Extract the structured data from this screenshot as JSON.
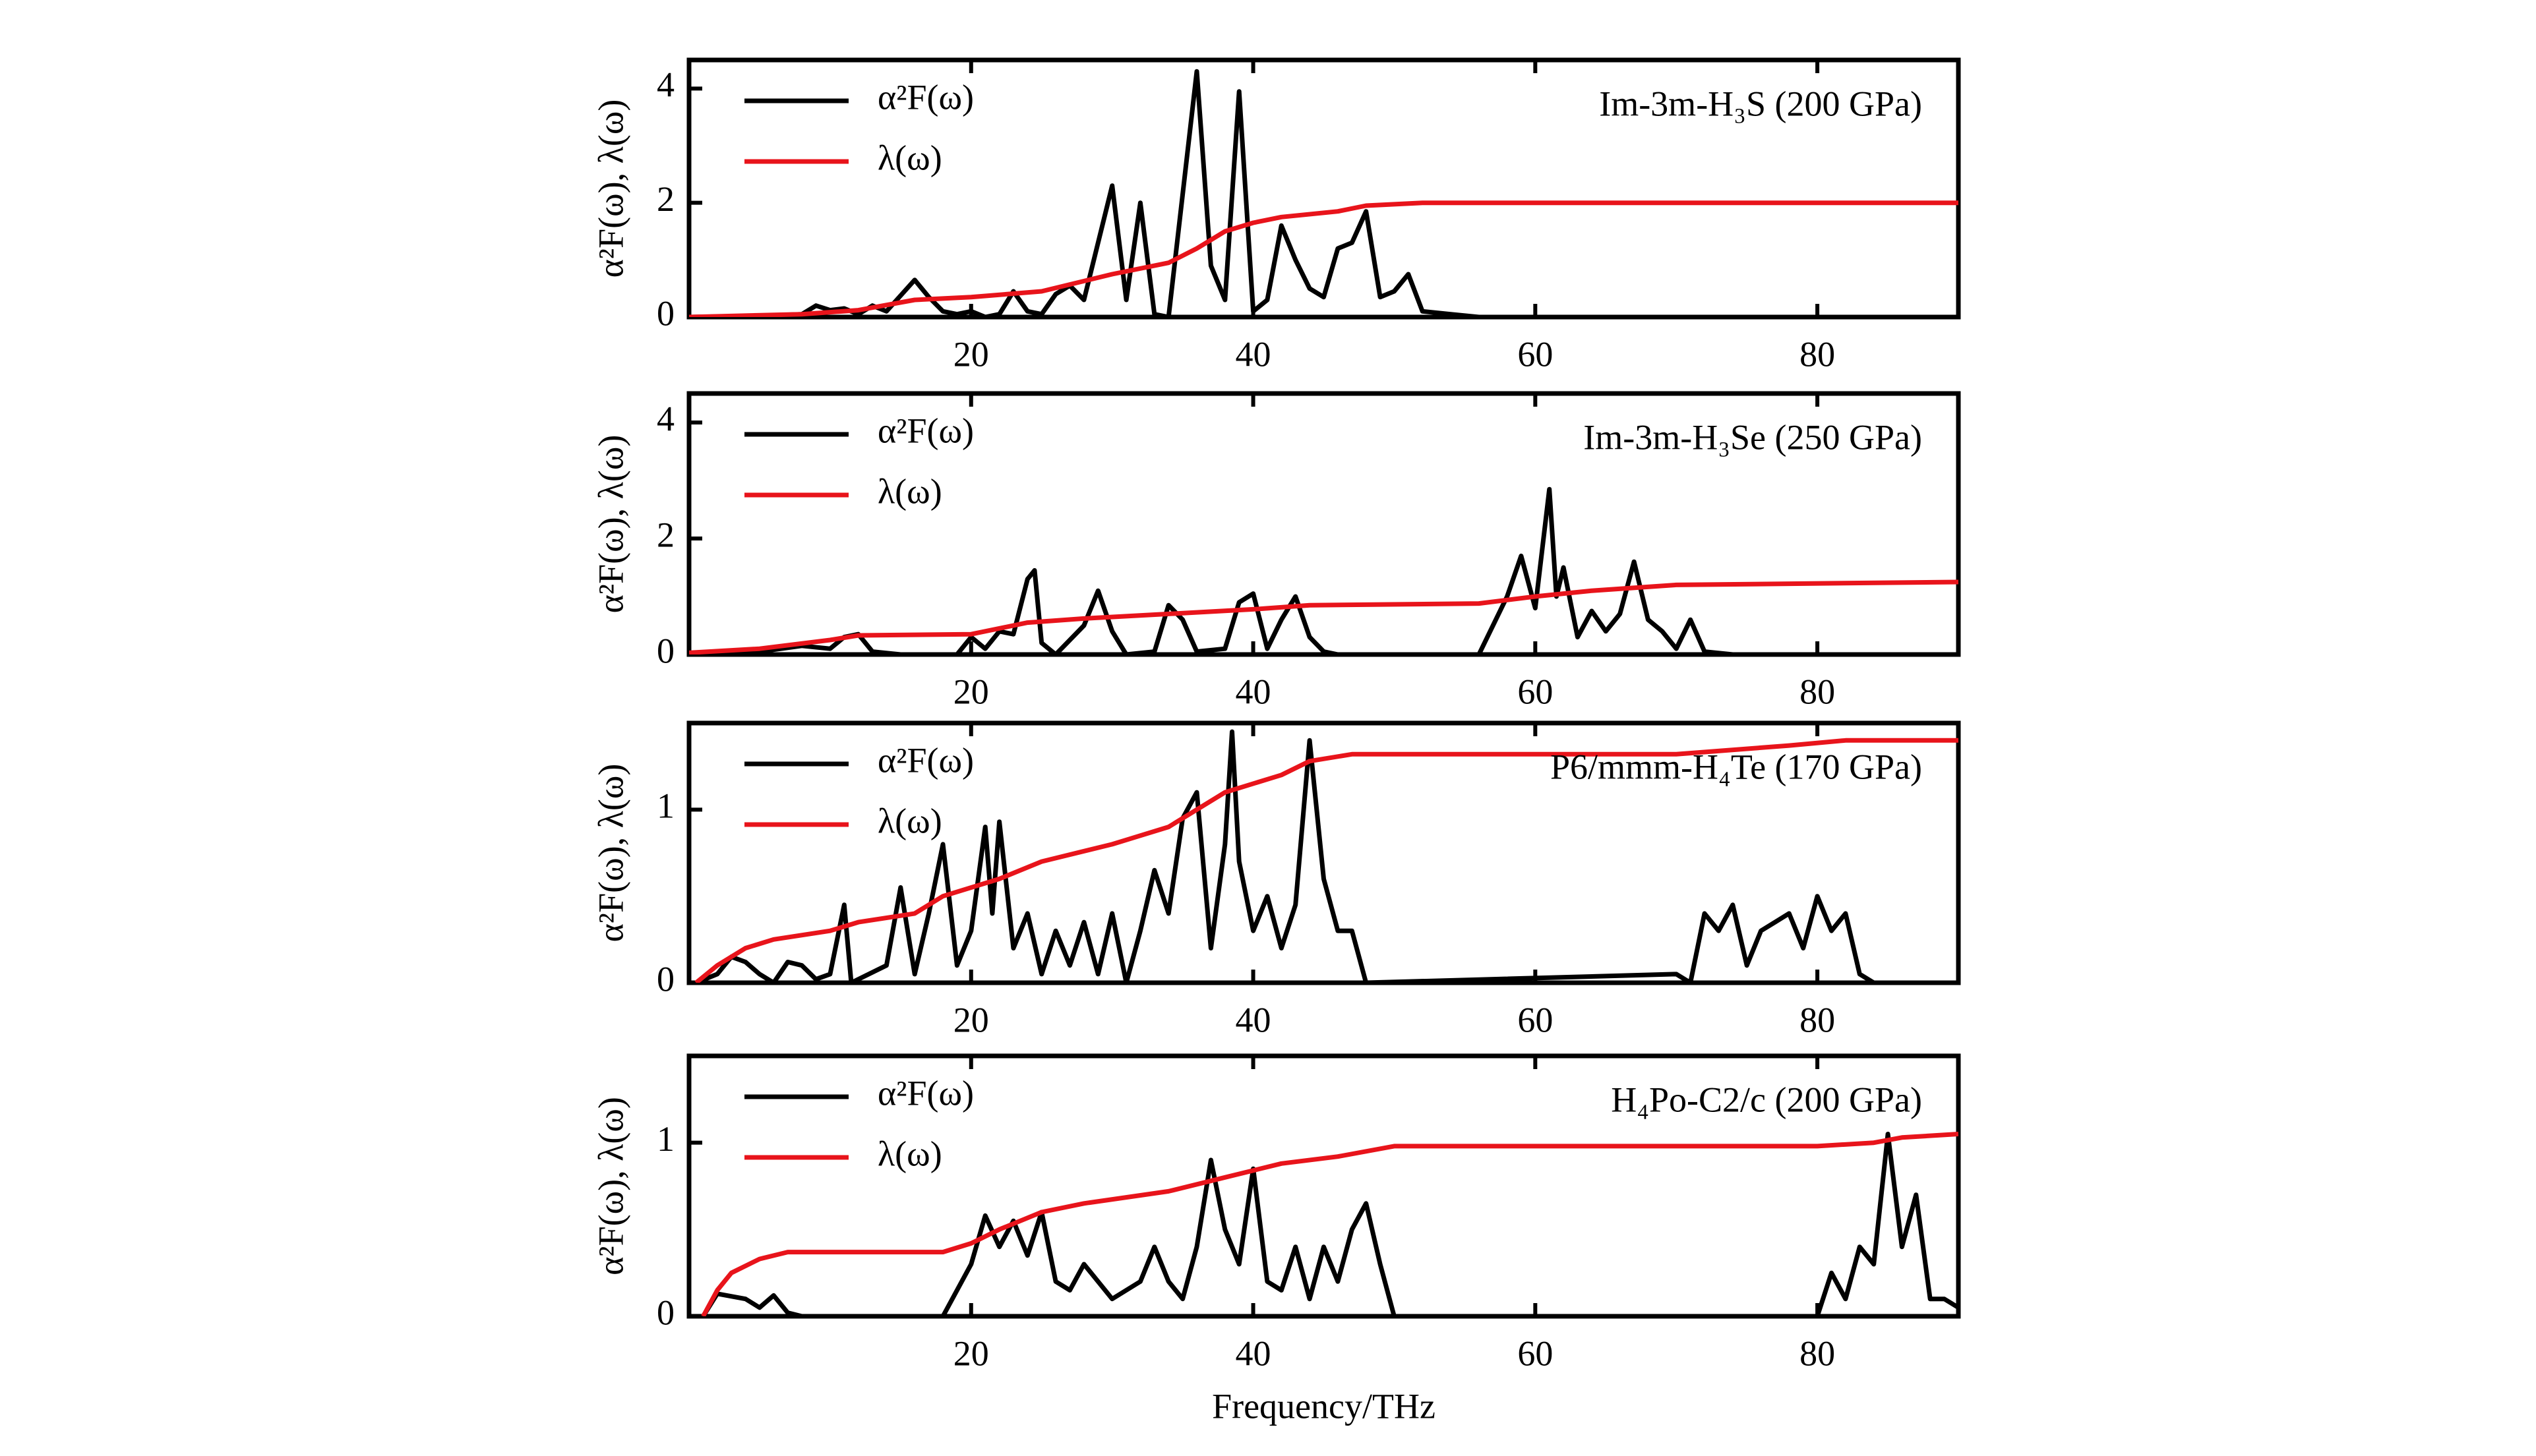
{
  "chart_data": [
    {
      "type": "line",
      "title": "Im-3m-H₃S (200 GPa)",
      "ylabel": "α²F(ω), λ(ω)",
      "xlim": [
        0,
        90
      ],
      "ylim": [
        0,
        4.5
      ],
      "xticks": [
        20,
        40,
        60,
        80
      ],
      "yticks": [
        0,
        2,
        4
      ],
      "series": [
        {
          "name": "α²F(ω)",
          "color": "#000000",
          "x": [
            0,
            5,
            8,
            9,
            10,
            11,
            12,
            13,
            14,
            16,
            17,
            18,
            19,
            20,
            21,
            22,
            23,
            24,
            25,
            26,
            27,
            28,
            30,
            31,
            32,
            33,
            34,
            36,
            37,
            38,
            39,
            40,
            41,
            42,
            43,
            44,
            45,
            46,
            47,
            48,
            49,
            50,
            51,
            52,
            54,
            56,
            90
          ],
          "values": [
            0,
            0.02,
            0.05,
            0.2,
            0.12,
            0.15,
            0.05,
            0.2,
            0.1,
            0.65,
            0.35,
            0.1,
            0.05,
            0.1,
            0,
            0.05,
            0.45,
            0.1,
            0.05,
            0.4,
            0.55,
            0.3,
            2.3,
            0.3,
            2.0,
            0.05,
            0,
            4.3,
            0.9,
            0.3,
            3.95,
            0.1,
            0.3,
            1.6,
            1.0,
            0.5,
            0.35,
            1.2,
            1.3,
            1.85,
            0.35,
            0.45,
            0.75,
            0.1,
            0.05,
            0,
            0
          ]
        },
        {
          "name": "λ(ω)",
          "color": "#e8141b",
          "x": [
            0,
            8,
            12,
            16,
            20,
            25,
            30,
            34,
            36,
            38,
            40,
            42,
            46,
            48,
            52,
            90
          ],
          "values": [
            0,
            0.05,
            0.12,
            0.3,
            0.35,
            0.45,
            0.75,
            0.95,
            1.2,
            1.5,
            1.65,
            1.75,
            1.85,
            1.95,
            2.0,
            2.0
          ]
        }
      ]
    },
    {
      "type": "line",
      "title": "Im-3m-H₃Se (250 GPa)",
      "ylabel": "α²F(ω), λ(ω)",
      "xlim": [
        0,
        90
      ],
      "ylim": [
        0,
        4.5
      ],
      "xticks": [
        20,
        40,
        60,
        80
      ],
      "yticks": [
        0,
        2,
        4
      ],
      "series": [
        {
          "name": "α²F(ω)",
          "color": "#000000",
          "x": [
            0,
            5,
            8,
            10,
            11,
            12,
            13,
            15,
            19,
            20,
            21,
            22,
            23,
            24,
            24.5,
            25,
            26,
            28,
            29,
            30,
            31,
            33,
            34,
            35,
            36,
            38,
            39,
            40,
            41,
            42,
            43,
            44,
            45,
            46,
            56,
            58,
            59,
            60,
            61,
            61.5,
            62,
            63,
            64,
            65,
            66,
            67,
            68,
            69,
            70,
            71,
            72,
            74,
            90
          ],
          "values": [
            0,
            0.05,
            0.15,
            0.1,
            0.3,
            0.35,
            0.05,
            0,
            0,
            0.3,
            0.1,
            0.4,
            0.35,
            1.3,
            1.45,
            0.2,
            0,
            0.5,
            1.1,
            0.4,
            0,
            0.05,
            0.85,
            0.6,
            0.05,
            0.1,
            0.9,
            1.05,
            0.1,
            0.6,
            1.0,
            0.3,
            0.05,
            0,
            0,
            1.0,
            1.7,
            0.8,
            2.85,
            1.0,
            1.5,
            0.3,
            0.75,
            0.4,
            0.7,
            1.6,
            0.6,
            0.4,
            0.1,
            0.6,
            0.05,
            0,
            0
          ]
        },
        {
          "name": "λ(ω)",
          "color": "#e8141b",
          "x": [
            0,
            5,
            10,
            12,
            20,
            24,
            28,
            34,
            40,
            44,
            56,
            60,
            64,
            70,
            90
          ],
          "values": [
            0.03,
            0.1,
            0.25,
            0.33,
            0.35,
            0.55,
            0.62,
            0.7,
            0.78,
            0.85,
            0.88,
            1.0,
            1.1,
            1.2,
            1.25
          ]
        }
      ]
    },
    {
      "type": "line",
      "title": "P6/mmm-H₄Te (170 GPa)",
      "ylabel": "α²F(ω), λ(ω)",
      "xlim": [
        0,
        90
      ],
      "ylim": [
        0,
        1.5
      ],
      "xticks": [
        20,
        40,
        60,
        80
      ],
      "yticks": [
        0,
        1
      ],
      "series": [
        {
          "name": "α²F(ω)",
          "color": "#000000",
          "x": [
            0.5,
            2,
            3,
            4,
            5,
            6,
            7,
            8,
            9,
            10,
            11,
            11.5,
            14,
            15,
            16,
            17,
            18,
            19,
            20,
            21,
            21.5,
            22,
            23,
            24,
            25,
            26,
            27,
            28,
            29,
            30,
            31,
            32,
            33,
            34,
            35,
            36,
            37,
            38,
            38.5,
            39,
            40,
            41,
            42,
            43,
            44,
            45,
            46,
            47,
            48,
            70,
            71,
            72,
            73,
            74,
            75,
            76,
            77,
            78,
            79,
            80,
            81,
            82,
            83,
            84,
            90
          ],
          "values": [
            0,
            0.05,
            0.15,
            0.12,
            0.05,
            0,
            0.12,
            0.1,
            0.02,
            0.05,
            0.45,
            0,
            0.1,
            0.55,
            0.05,
            0.4,
            0.8,
            0.1,
            0.3,
            0.9,
            0.4,
            0.93,
            0.2,
            0.4,
            0.05,
            0.3,
            0.1,
            0.35,
            0.05,
            0.4,
            0,
            0.3,
            0.65,
            0.4,
            0.95,
            1.1,
            0.2,
            0.8,
            1.45,
            0.7,
            0.3,
            0.5,
            0.2,
            0.45,
            1.4,
            0.6,
            0.3,
            0.3,
            0,
            0.05,
            0,
            0.4,
            0.3,
            0.45,
            0.1,
            0.3,
            0.35,
            0.4,
            0.2,
            0.5,
            0.3,
            0.4,
            0.05,
            0,
            0
          ]
        },
        {
          "name": "λ(ω)",
          "color": "#e8141b",
          "x": [
            0.5,
            2,
            4,
            6,
            10,
            12,
            16,
            18,
            22,
            25,
            30,
            34,
            38,
            42,
            44,
            47,
            70,
            78,
            82,
            90
          ],
          "values": [
            0,
            0.1,
            0.2,
            0.25,
            0.3,
            0.35,
            0.4,
            0.5,
            0.6,
            0.7,
            0.8,
            0.9,
            1.1,
            1.2,
            1.28,
            1.32,
            1.32,
            1.37,
            1.4,
            1.4
          ]
        }
      ]
    },
    {
      "type": "line",
      "title": "H₄Po-C2/c (200 GPa)",
      "ylabel": "α²F(ω), λ(ω)",
      "xlabel": "Frequency/THz",
      "xlim": [
        0,
        90
      ],
      "ylim": [
        0,
        1.5
      ],
      "xticks": [
        20,
        40,
        60,
        80
      ],
      "yticks": [
        0,
        1
      ],
      "series": [
        {
          "name": "α²F(ω)",
          "color": "#000000",
          "x": [
            1,
            2,
            4,
            5,
            6,
            7,
            8,
            18,
            20,
            21,
            22,
            23,
            24,
            25,
            26,
            27,
            28,
            29,
            30,
            32,
            33,
            34,
            35,
            36,
            37,
            38,
            39,
            40,
            41,
            42,
            43,
            44,
            45,
            46,
            47,
            48,
            49,
            50,
            80,
            81,
            82,
            83,
            84,
            85,
            86,
            87,
            88,
            89,
            90
          ],
          "values": [
            0,
            0.13,
            0.1,
            0.05,
            0.12,
            0.02,
            0,
            0,
            0.3,
            0.58,
            0.4,
            0.55,
            0.35,
            0.6,
            0.2,
            0.15,
            0.3,
            0.2,
            0.1,
            0.2,
            0.4,
            0.2,
            0.1,
            0.4,
            0.9,
            0.5,
            0.3,
            0.85,
            0.2,
            0.15,
            0.4,
            0.1,
            0.4,
            0.2,
            0.5,
            0.65,
            0.3,
            0,
            0,
            0.25,
            0.1,
            0.4,
            0.3,
            1.05,
            0.4,
            0.7,
            0.1,
            0.1,
            0.05
          ]
        },
        {
          "name": "λ(ω)",
          "color": "#e8141b",
          "x": [
            1,
            2,
            3,
            5,
            7,
            18,
            20,
            22,
            25,
            28,
            34,
            38,
            42,
            46,
            50,
            80,
            84,
            86,
            90
          ],
          "values": [
            0,
            0.15,
            0.25,
            0.33,
            0.37,
            0.37,
            0.42,
            0.5,
            0.6,
            0.65,
            0.72,
            0.8,
            0.88,
            0.92,
            0.98,
            0.98,
            1.0,
            1.03,
            1.05
          ]
        }
      ]
    }
  ]
}
